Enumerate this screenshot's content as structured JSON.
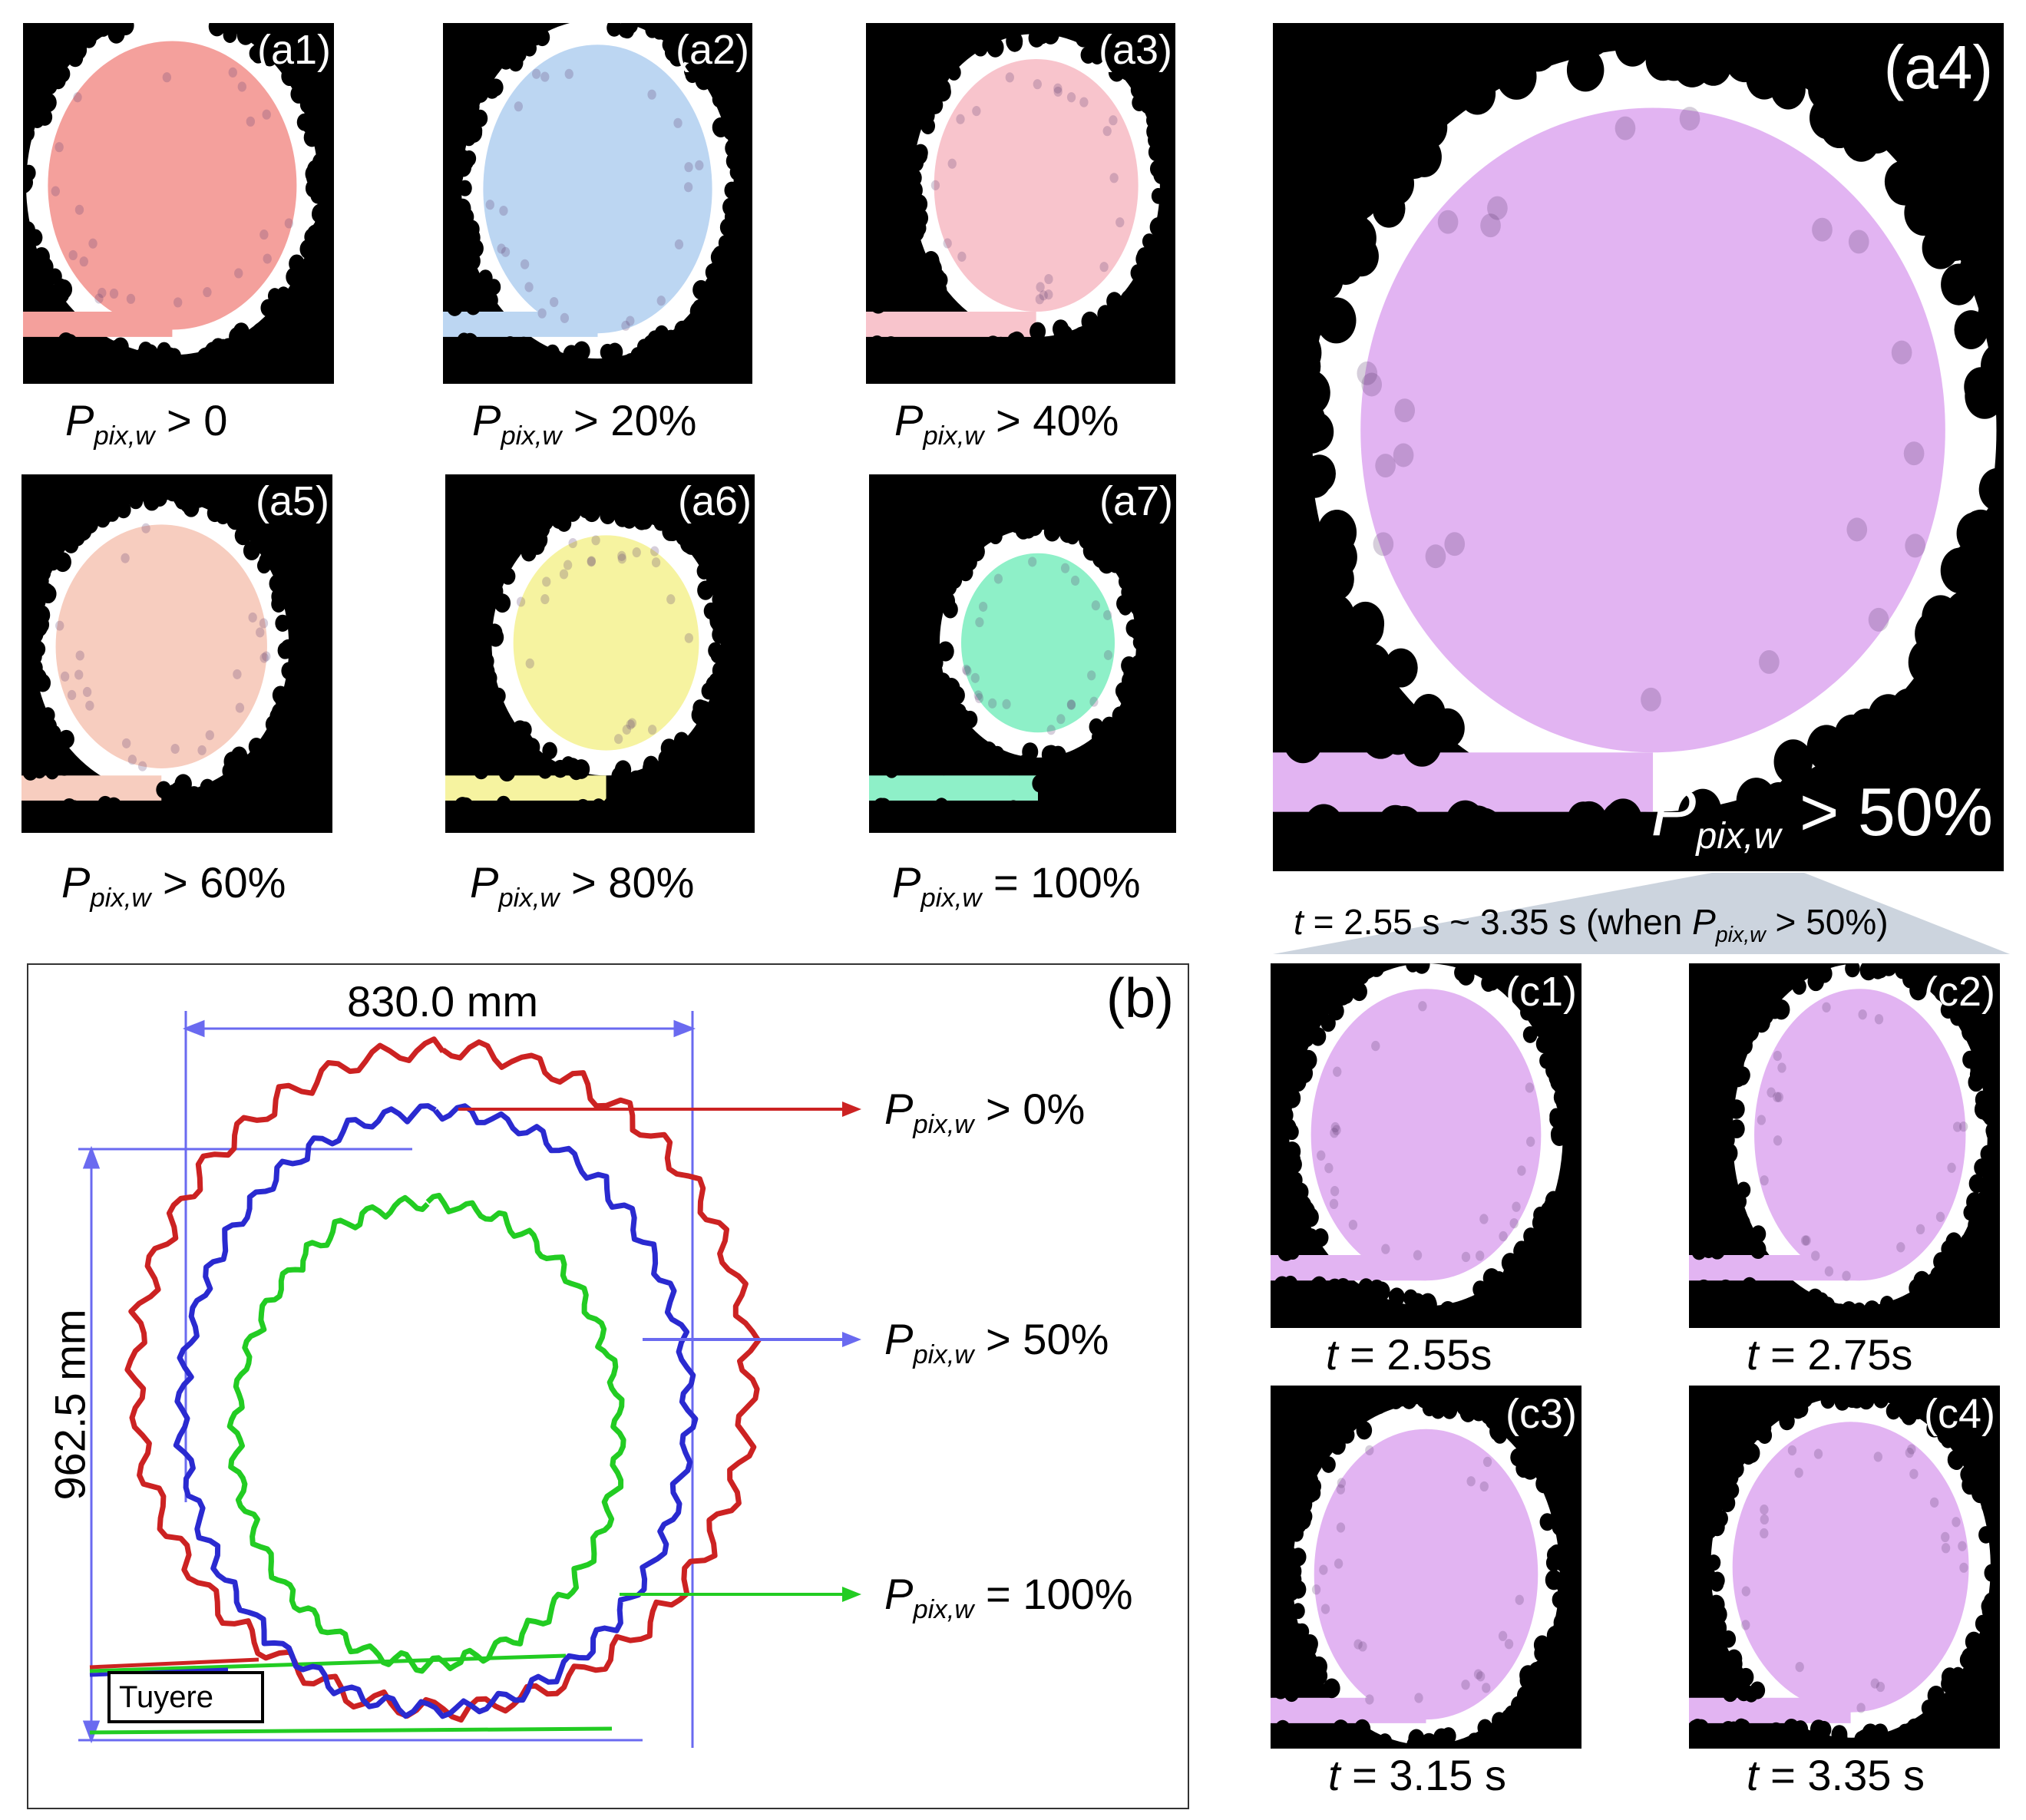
{
  "panels": {
    "a1": {
      "label": "(a1)",
      "caption_rel": "> 0",
      "fill": "#f4a09c"
    },
    "a2": {
      "label": "(a2)",
      "caption_rel": "> 20%",
      "fill": "#bcd6f2"
    },
    "a3": {
      "label": "(a3)",
      "caption_rel": "> 40%",
      "fill": "#f8c4cc"
    },
    "a4": {
      "label": "(a4)",
      "caption_rel": "> 50%",
      "fill": "#e2b4f2"
    },
    "a5": {
      "label": "(a5)",
      "caption_rel": "> 60%",
      "fill": "#f7cdbf"
    },
    "a6": {
      "label": "(a6)",
      "caption_rel": "> 80%",
      "fill": "#f6f3a0"
    },
    "a7": {
      "label": "(a7)",
      "caption_rel": "= 100%",
      "fill": "#8ef0c8"
    },
    "c1": {
      "label": "(c1)",
      "time": "= 2.55s",
      "fill": "#e2b4f2"
    },
    "c2": {
      "label": "(c2)",
      "time": "= 2.75s",
      "fill": "#e2b4f2"
    },
    "c3": {
      "label": "(c3)",
      "time": "= 3.15 s",
      "fill": "#e2b4f2"
    },
    "c4": {
      "label": "(c4)",
      "time": "= 3.35 s",
      "fill": "#e2b4f2"
    }
  },
  "symbol": {
    "P": "P",
    "sub": "pix,w",
    "t": "t"
  },
  "time_range": {
    "prefix": "= 2.55 s ~ 3.35 s (when ",
    "rel": "> 50%)"
  },
  "panel_b": {
    "label": "(b)",
    "width_dim": "830.0 mm",
    "height_dim": "962.5 mm",
    "tuyere": "Tuyere",
    "curves": [
      {
        "rel": "> 0%",
        "color": "#cc2222"
      },
      {
        "rel": "> 50%",
        "color": "#2a2ad0"
      },
      {
        "rel": "= 100%",
        "color": "#22cc22"
      }
    ],
    "dim_color": "#6a6af0"
  }
}
